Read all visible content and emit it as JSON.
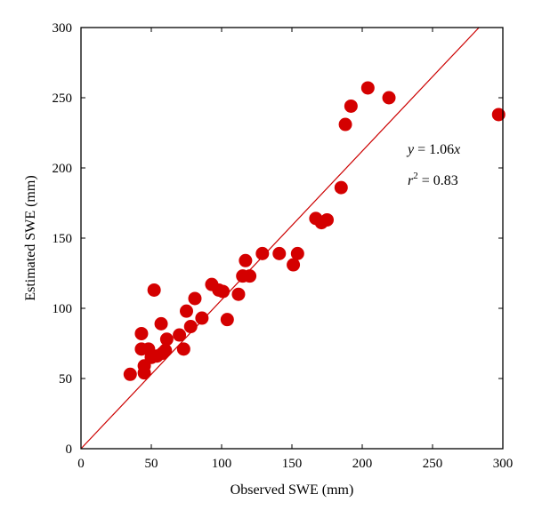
{
  "chart_data": {
    "type": "scatter",
    "xlabel": "Observed SWE (mm)",
    "ylabel": "Estimated SWE (mm)",
    "xlim": [
      0,
      300
    ],
    "ylim": [
      0,
      300
    ],
    "xticks": [
      0,
      50,
      100,
      150,
      200,
      250,
      300
    ],
    "yticks": [
      0,
      50,
      100,
      150,
      200,
      250,
      300
    ],
    "grid": false,
    "colors": {
      "points": "#d40000",
      "fit_line": "#cc0000"
    },
    "fit": {
      "slope": 1.06,
      "intercept": 0
    },
    "annotations": {
      "equation": {
        "lhs": "y",
        "rest": " = 1.06",
        "var": "x"
      },
      "r2": {
        "lhs": "r",
        "sup": "2",
        "rest": " = 0.83"
      }
    },
    "points": [
      {
        "x": 35,
        "y": 53
      },
      {
        "x": 43,
        "y": 71
      },
      {
        "x": 43,
        "y": 82
      },
      {
        "x": 45,
        "y": 54
      },
      {
        "x": 45,
        "y": 59
      },
      {
        "x": 48,
        "y": 71
      },
      {
        "x": 50,
        "y": 65
      },
      {
        "x": 52,
        "y": 113
      },
      {
        "x": 54,
        "y": 66
      },
      {
        "x": 57,
        "y": 89
      },
      {
        "x": 58,
        "y": 68
      },
      {
        "x": 60,
        "y": 70
      },
      {
        "x": 61,
        "y": 78
      },
      {
        "x": 70,
        "y": 81
      },
      {
        "x": 73,
        "y": 71
      },
      {
        "x": 75,
        "y": 98
      },
      {
        "x": 78,
        "y": 87
      },
      {
        "x": 81,
        "y": 107
      },
      {
        "x": 86,
        "y": 93
      },
      {
        "x": 93,
        "y": 117
      },
      {
        "x": 98,
        "y": 113
      },
      {
        "x": 101,
        "y": 112
      },
      {
        "x": 104,
        "y": 92
      },
      {
        "x": 112,
        "y": 110
      },
      {
        "x": 115,
        "y": 123
      },
      {
        "x": 117,
        "y": 134
      },
      {
        "x": 120,
        "y": 123
      },
      {
        "x": 129,
        "y": 139
      },
      {
        "x": 141,
        "y": 139
      },
      {
        "x": 151,
        "y": 131
      },
      {
        "x": 154,
        "y": 139
      },
      {
        "x": 167,
        "y": 164
      },
      {
        "x": 171,
        "y": 161
      },
      {
        "x": 175,
        "y": 163
      },
      {
        "x": 185,
        "y": 186
      },
      {
        "x": 188,
        "y": 231
      },
      {
        "x": 192,
        "y": 244
      },
      {
        "x": 204,
        "y": 257
      },
      {
        "x": 219,
        "y": 250
      },
      {
        "x": 297,
        "y": 238
      }
    ]
  }
}
